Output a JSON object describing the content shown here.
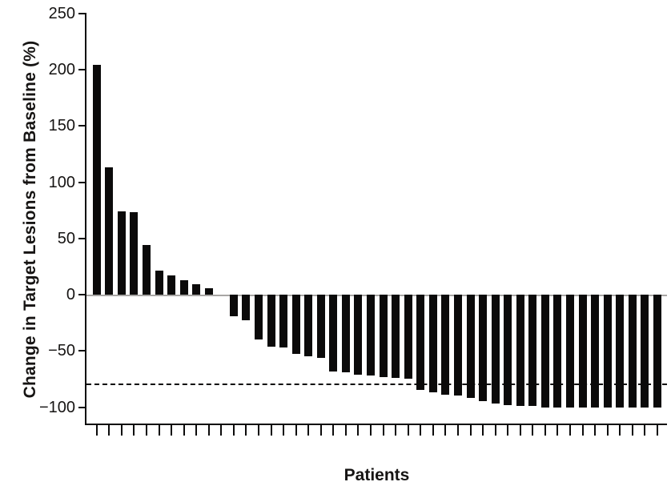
{
  "figure": {
    "ylabel": "Change in Target Lesions from Baseline (%)",
    "xlabel": "Patients"
  },
  "chart_data": {
    "type": "bar",
    "subtype": "waterfall",
    "title": "",
    "ylabel": "Change in Target Lesions from Baseline (%)",
    "xlabel": "Patients",
    "ylim": [
      -115,
      250
    ],
    "yticks": [
      250,
      200,
      150,
      100,
      50,
      0,
      -50,
      -100
    ],
    "ytick_labels": [
      "250",
      "200",
      "150",
      "100",
      "50",
      "0",
      "−50",
      "−100"
    ],
    "grid": false,
    "legend": false,
    "n_bars": 46,
    "x_unit": "individual patients, sorted by response",
    "values": [
      204,
      113,
      74,
      73,
      44,
      21,
      17,
      13,
      9,
      6,
      0,
      -19,
      -23,
      -40,
      -46,
      -47,
      -53,
      -55,
      -56,
      -68,
      -69,
      -71,
      -72,
      -73,
      -74,
      -75,
      -85,
      -87,
      -89,
      -90,
      -92,
      -95,
      -97,
      -98,
      -99,
      -99,
      -100,
      -100,
      -100,
      -100,
      -100,
      -100,
      -100,
      -100,
      -100,
      -100
    ],
    "reference_line": {
      "y": -80,
      "style": "dashed",
      "color": "#0b0a0a"
    },
    "zero_line": {
      "y": 0,
      "color": "#a8a6a4"
    },
    "bar_color": "#0b0a0a",
    "background_color": "#ffffff"
  }
}
